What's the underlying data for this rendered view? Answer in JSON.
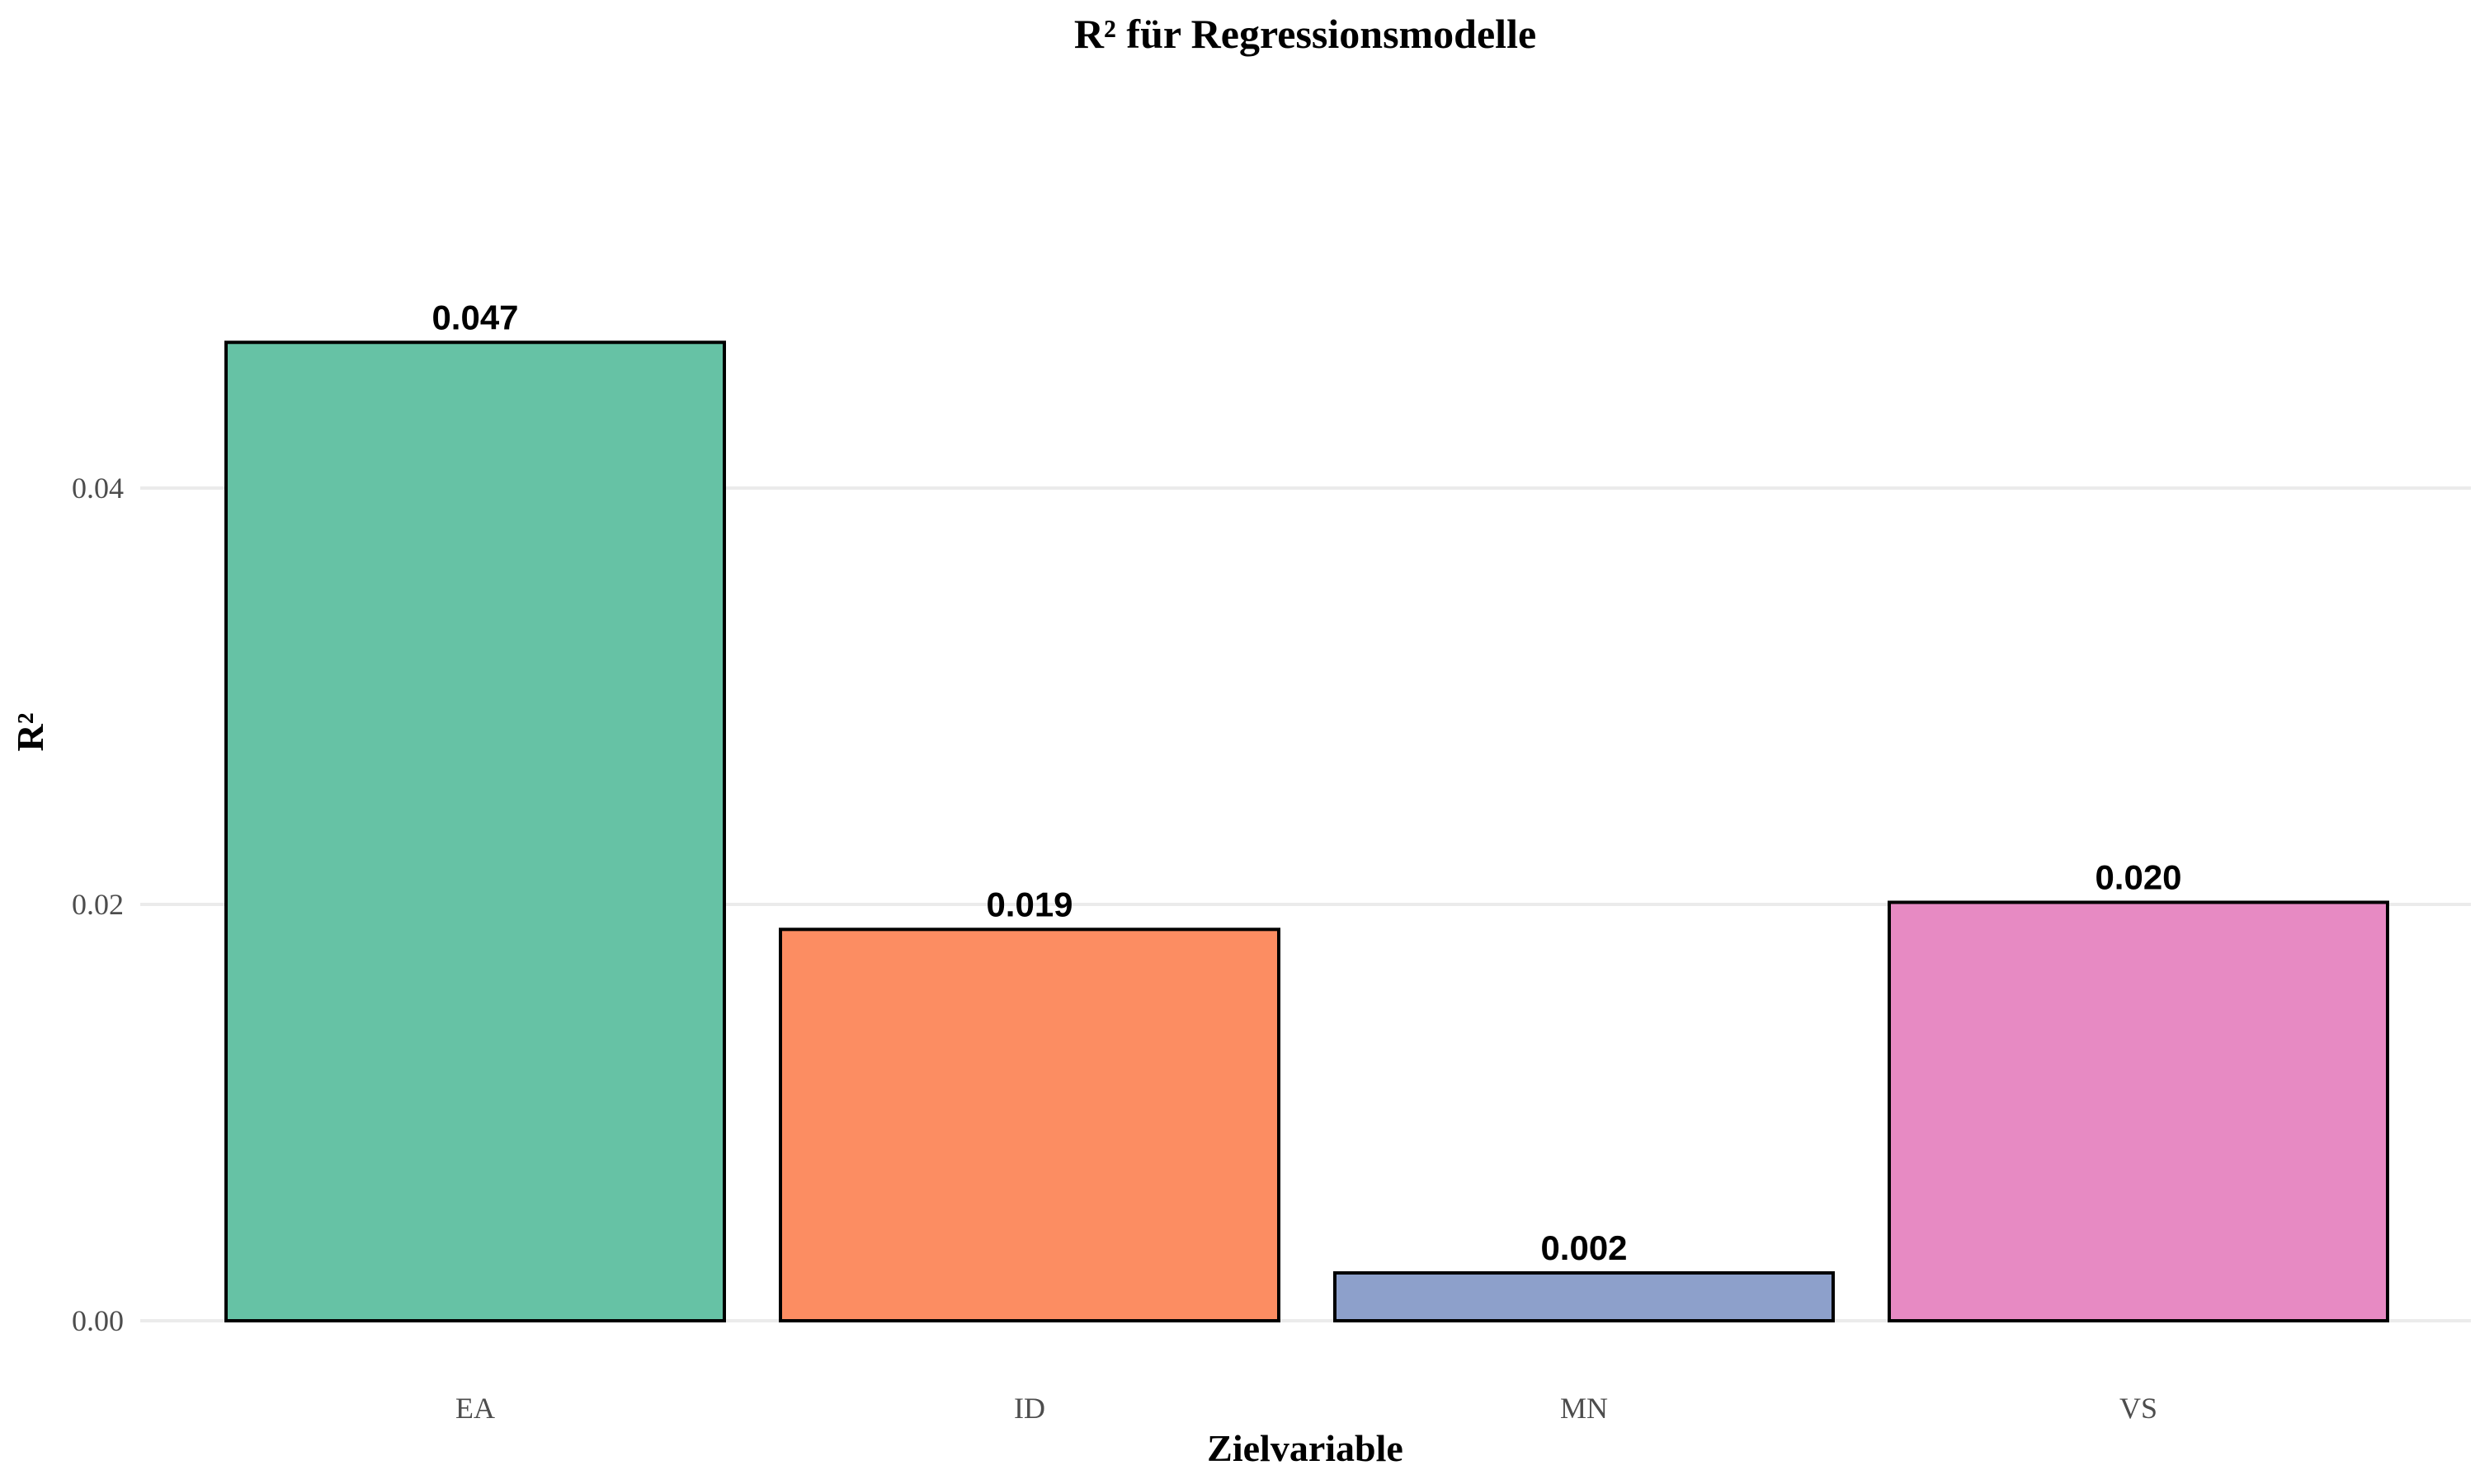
{
  "chart_data": {
    "type": "bar",
    "title": "R² für Regressionsmodelle",
    "xlabel": "Zielvariable",
    "ylabel": "R²",
    "categories": [
      "EA",
      "ID",
      "MN",
      "VS"
    ],
    "values": [
      0.047,
      0.0188,
      0.0023,
      0.0201
    ],
    "value_labels": [
      "0.047",
      "0.019",
      "0.002",
      "0.020"
    ],
    "colors": [
      "#66c2a5",
      "#fc8d62",
      "#8da0cb",
      "#e78ac3"
    ],
    "ylim": [
      0,
      0.05
    ],
    "yticks": [
      0.0,
      0.02,
      0.04
    ],
    "ytick_labels": [
      "0.00",
      "0.02",
      "0.04"
    ],
    "grid": true,
    "legend": false
  }
}
